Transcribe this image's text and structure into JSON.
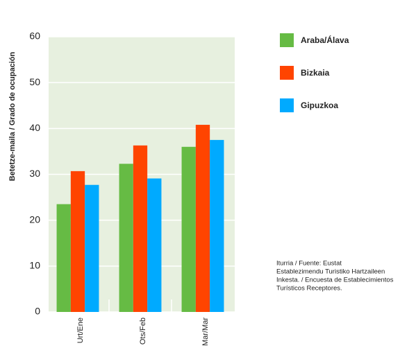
{
  "chart_data": {
    "type": "bar",
    "y_label": "Betetze-maila / Grado de ocupación",
    "categories": [
      "Urt/Ene",
      "Ots/Feb",
      "Mar/Mar"
    ],
    "series": [
      {
        "name": "Araba/Álava",
        "color": "#66bb44",
        "values": [
          23.5,
          32.3,
          36
        ]
      },
      {
        "name": "Bizkaia",
        "color": "#ff4400",
        "values": [
          30.7,
          36.3,
          40.8
        ]
      },
      {
        "name": "Gipuzkoa",
        "color": "#00aaff",
        "values": [
          27.7,
          29.1,
          37.5
        ]
      }
    ],
    "ylim": [
      0,
      60
    ],
    "yticks": [
      0,
      10,
      20,
      30,
      40,
      50,
      60
    ],
    "grid": true,
    "legend": "right",
    "source": [
      "Iturria / Fuente: Eustat",
      "Establezimendu Turistiko Hartzaileen",
      "Inkesta. / Encuesta de Establecimientos",
      "Turísticos Receptores."
    ]
  }
}
